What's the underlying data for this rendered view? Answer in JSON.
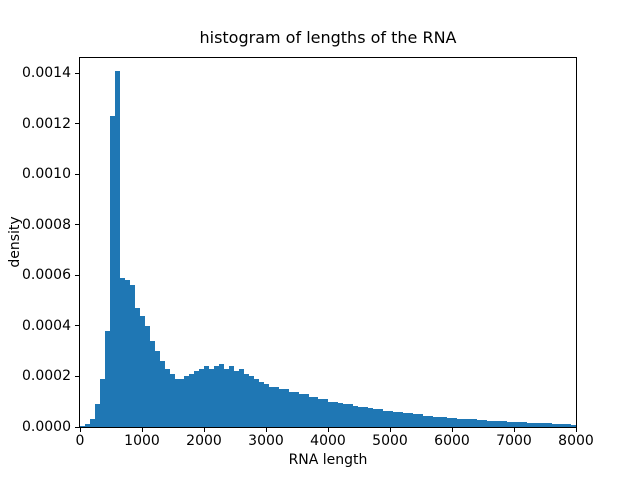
{
  "chart_data": {
    "type": "bar",
    "subtype": "histogram",
    "title": "histogram of lengths of the RNA",
    "xlabel": "RNA length",
    "ylabel": "density",
    "xlim": [
      0,
      8000
    ],
    "ylim": [
      0,
      0.00146
    ],
    "grid": false,
    "legend": "none",
    "bar_color": "#1f77b4",
    "bin_width": 80,
    "bins_start": 0,
    "x_ticks": [
      {
        "value": 0,
        "label": "0"
      },
      {
        "value": 1000,
        "label": "1000"
      },
      {
        "value": 2000,
        "label": "2000"
      },
      {
        "value": 3000,
        "label": "3000"
      },
      {
        "value": 4000,
        "label": "4000"
      },
      {
        "value": 5000,
        "label": "5000"
      },
      {
        "value": 6000,
        "label": "6000"
      },
      {
        "value": 7000,
        "label": "7000"
      },
      {
        "value": 8000,
        "label": "8000"
      }
    ],
    "y_ticks": [
      {
        "value": 0,
        "label": "0.0000"
      },
      {
        "value": 0.0002,
        "label": "0.0002"
      },
      {
        "value": 0.0004,
        "label": "0.0004"
      },
      {
        "value": 0.0006,
        "label": "0.0006"
      },
      {
        "value": 0.0008,
        "label": "0.0008"
      },
      {
        "value": 0.001,
        "label": "0.0010"
      },
      {
        "value": 0.0012,
        "label": "0.0012"
      },
      {
        "value": 0.0014,
        "label": "0.0014"
      }
    ],
    "values": [
      5e-06,
      1e-05,
      3e-05,
      9e-05,
      0.00019,
      0.00038,
      0.00123,
      0.00141,
      0.00059,
      0.00058,
      0.00056,
      0.00047,
      0.00044,
      0.0004,
      0.00034,
      0.0003,
      0.00026,
      0.00023,
      0.00021,
      0.00019,
      0.00019,
      0.0002,
      0.00021,
      0.00022,
      0.00023,
      0.00024,
      0.00023,
      0.00024,
      0.00025,
      0.00023,
      0.00024,
      0.00022,
      0.00023,
      0.00021,
      0.0002,
      0.00019,
      0.00018,
      0.00017,
      0.00016,
      0.00016,
      0.00015,
      0.00015,
      0.00014,
      0.00014,
      0.00013,
      0.00013,
      0.00012,
      0.00012,
      0.00011,
      0.00011,
      0.0001,
      0.0001,
      9.5e-05,
      9e-05,
      9e-05,
      8.5e-05,
      8e-05,
      8e-05,
      7.5e-05,
      7e-05,
      7e-05,
      6.5e-05,
      6.5e-05,
      6e-05,
      6e-05,
      5.5e-05,
      5.5e-05,
      5e-05,
      5e-05,
      4.5e-05,
      4.5e-05,
      4e-05,
      4e-05,
      3.8e-05,
      3.6e-05,
      3.5e-05,
      3.3e-05,
      3.2e-05,
      3e-05,
      3e-05,
      2.8e-05,
      2.7e-05,
      2.5e-05,
      2.4e-05,
      2.3e-05,
      2.2e-05,
      2e-05,
      2e-05,
      1.8e-05,
      1.8e-05,
      1.6e-05,
      1.5e-05,
      1.5e-05,
      1.4e-05,
      1.6e-05,
      1.2e-05,
      1.2e-05,
      1e-05,
      1e-05,
      9e-06
    ]
  }
}
